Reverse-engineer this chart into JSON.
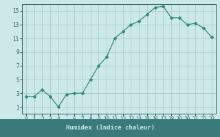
{
  "x": [
    0,
    1,
    2,
    3,
    4,
    5,
    6,
    7,
    8,
    9,
    10,
    11,
    12,
    13,
    14,
    15,
    16,
    17,
    18,
    19,
    20,
    21,
    22,
    23
  ],
  "y": [
    2.5,
    2.5,
    3.5,
    2.5,
    1.0,
    2.8,
    3.0,
    3.0,
    5.0,
    7.0,
    8.3,
    11.0,
    12.0,
    13.0,
    13.5,
    14.5,
    15.5,
    15.7,
    14.0,
    14.0,
    13.0,
    13.2,
    12.5,
    11.2
  ],
  "line_color": "#2d8b7a",
  "marker": "D",
  "marker_size": 2.5,
  "bg_color": "#cce8e8",
  "grid_color": "#aacccc",
  "xlabel": "Humidex (Indice chaleur)",
  "xlim": [
    -0.5,
    23.5
  ],
  "ylim": [
    0,
    16
  ],
  "yticks": [
    1,
    3,
    5,
    7,
    9,
    11,
    13,
    15
  ],
  "xticks": [
    0,
    1,
    2,
    3,
    4,
    5,
    6,
    7,
    8,
    9,
    10,
    11,
    12,
    13,
    14,
    15,
    16,
    17,
    18,
    19,
    20,
    21,
    22,
    23
  ],
  "xtick_labels": [
    "0",
    "1",
    "2",
    "3",
    "4",
    "",
    "6",
    "7",
    "8",
    "9",
    "10",
    "11",
    "12",
    "13",
    "14",
    "15",
    "16",
    "17",
    "18",
    "19",
    "20",
    "21",
    "22",
    "23"
  ],
  "tick_color": "#2d6060",
  "label_fontsize": 6.5,
  "tick_fontsize": 5.5,
  "spine_color": "#2d6060",
  "xlabel_bg_color": "#3a7a7a",
  "xlabel_text_color": "#cce8e8"
}
